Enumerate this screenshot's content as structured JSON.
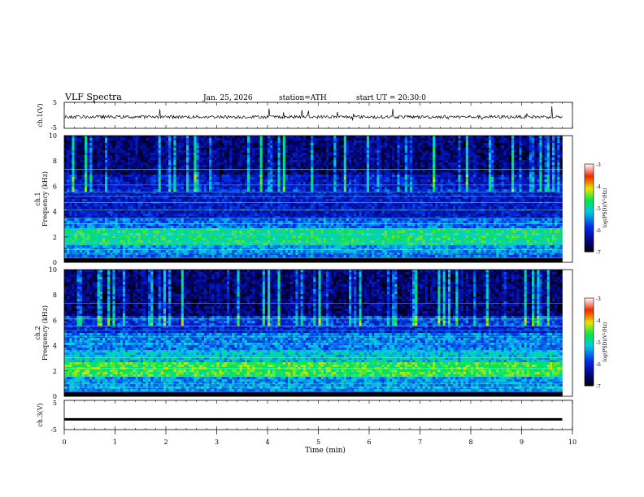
{
  "header": {
    "title": "VLF  Spectra",
    "date": "Jan. 25, 2026",
    "station": "station=ATH",
    "start_ut": "start  UT  =   20:30:0"
  },
  "chart_data": [
    {
      "type": "line",
      "name": "ch1-waveform",
      "ylabel": "ch.1(V)",
      "ylim": [
        -5,
        5
      ],
      "y_ticks": [
        "5",
        "-5"
      ],
      "baseline_v": -0.6,
      "xlim": [
        0,
        9.8
      ]
    },
    {
      "type": "heatmap",
      "name": "ch1-spectrogram",
      "ylabel_channel": "ch.1",
      "ylabel": "Frequency  (kHz)",
      "ylim": [
        0,
        10
      ],
      "y_ticks": [
        "0",
        "2",
        "4",
        "6",
        "8",
        "10"
      ],
      "xlim": [
        0,
        9.8
      ],
      "colorbar": {
        "label": "log(PSD)(V²/Hz)",
        "range": [
          -7,
          -3
        ],
        "ticks": [
          "-3",
          "-4",
          "-5",
          "-6",
          "-7"
        ]
      },
      "bands": [
        {
          "f": [
            0,
            0.3
          ],
          "level": -6.5
        },
        {
          "f": [
            0.3,
            0.8
          ],
          "level": -5.6
        },
        {
          "f": [
            0.8,
            1.4
          ],
          "level": -5.4
        },
        {
          "f": [
            1.4,
            2.6
          ],
          "level": -4.8
        },
        {
          "f": [
            2.6,
            3.4
          ],
          "level": -5.6
        },
        {
          "f": [
            3.4,
            5.8
          ],
          "level": -6.1
        },
        {
          "f": [
            5.8,
            7.0
          ],
          "level": -6.3
        },
        {
          "f": [
            7.0,
            10.0
          ],
          "level": -6.7
        }
      ]
    },
    {
      "type": "heatmap",
      "name": "ch2-spectrogram",
      "ylabel_channel": "ch.2",
      "ylabel": "Frequency  (kHz)",
      "ylim": [
        0,
        10
      ],
      "y_ticks": [
        "0",
        "2",
        "4",
        "6",
        "8",
        "10"
      ],
      "xlim": [
        0,
        9.8
      ],
      "colorbar": {
        "label": "log(PSD)(V²/Hz)",
        "range": [
          -7,
          -3
        ],
        "ticks": [
          "-3",
          "-4",
          "-5",
          "-6",
          "-7"
        ]
      },
      "bands": [
        {
          "f": [
            0,
            0.3
          ],
          "level": -6.4
        },
        {
          "f": [
            0.3,
            1.6
          ],
          "level": -5.4
        },
        {
          "f": [
            1.6,
            2.6
          ],
          "level": -4.6
        },
        {
          "f": [
            2.6,
            3.6
          ],
          "level": -5.2
        },
        {
          "f": [
            3.6,
            5.0
          ],
          "level": -5.5
        },
        {
          "f": [
            5.0,
            6.4
          ],
          "level": -6.0
        },
        {
          "f": [
            6.4,
            10.0
          ],
          "level": -6.7
        }
      ]
    },
    {
      "type": "line",
      "name": "ch3-waveform",
      "ylabel": "ch.3(V)",
      "ylim": [
        -5,
        5
      ],
      "y_ticks": [
        "5",
        "-5"
      ],
      "baseline_v": -1.5,
      "xlim": [
        0,
        9.8
      ]
    }
  ],
  "x_axis": {
    "label": "Time  (min)",
    "range": [
      0,
      10
    ],
    "ticks": [
      "0",
      "1",
      "2",
      "3",
      "4",
      "5",
      "6",
      "7",
      "8",
      "9",
      "10"
    ]
  }
}
